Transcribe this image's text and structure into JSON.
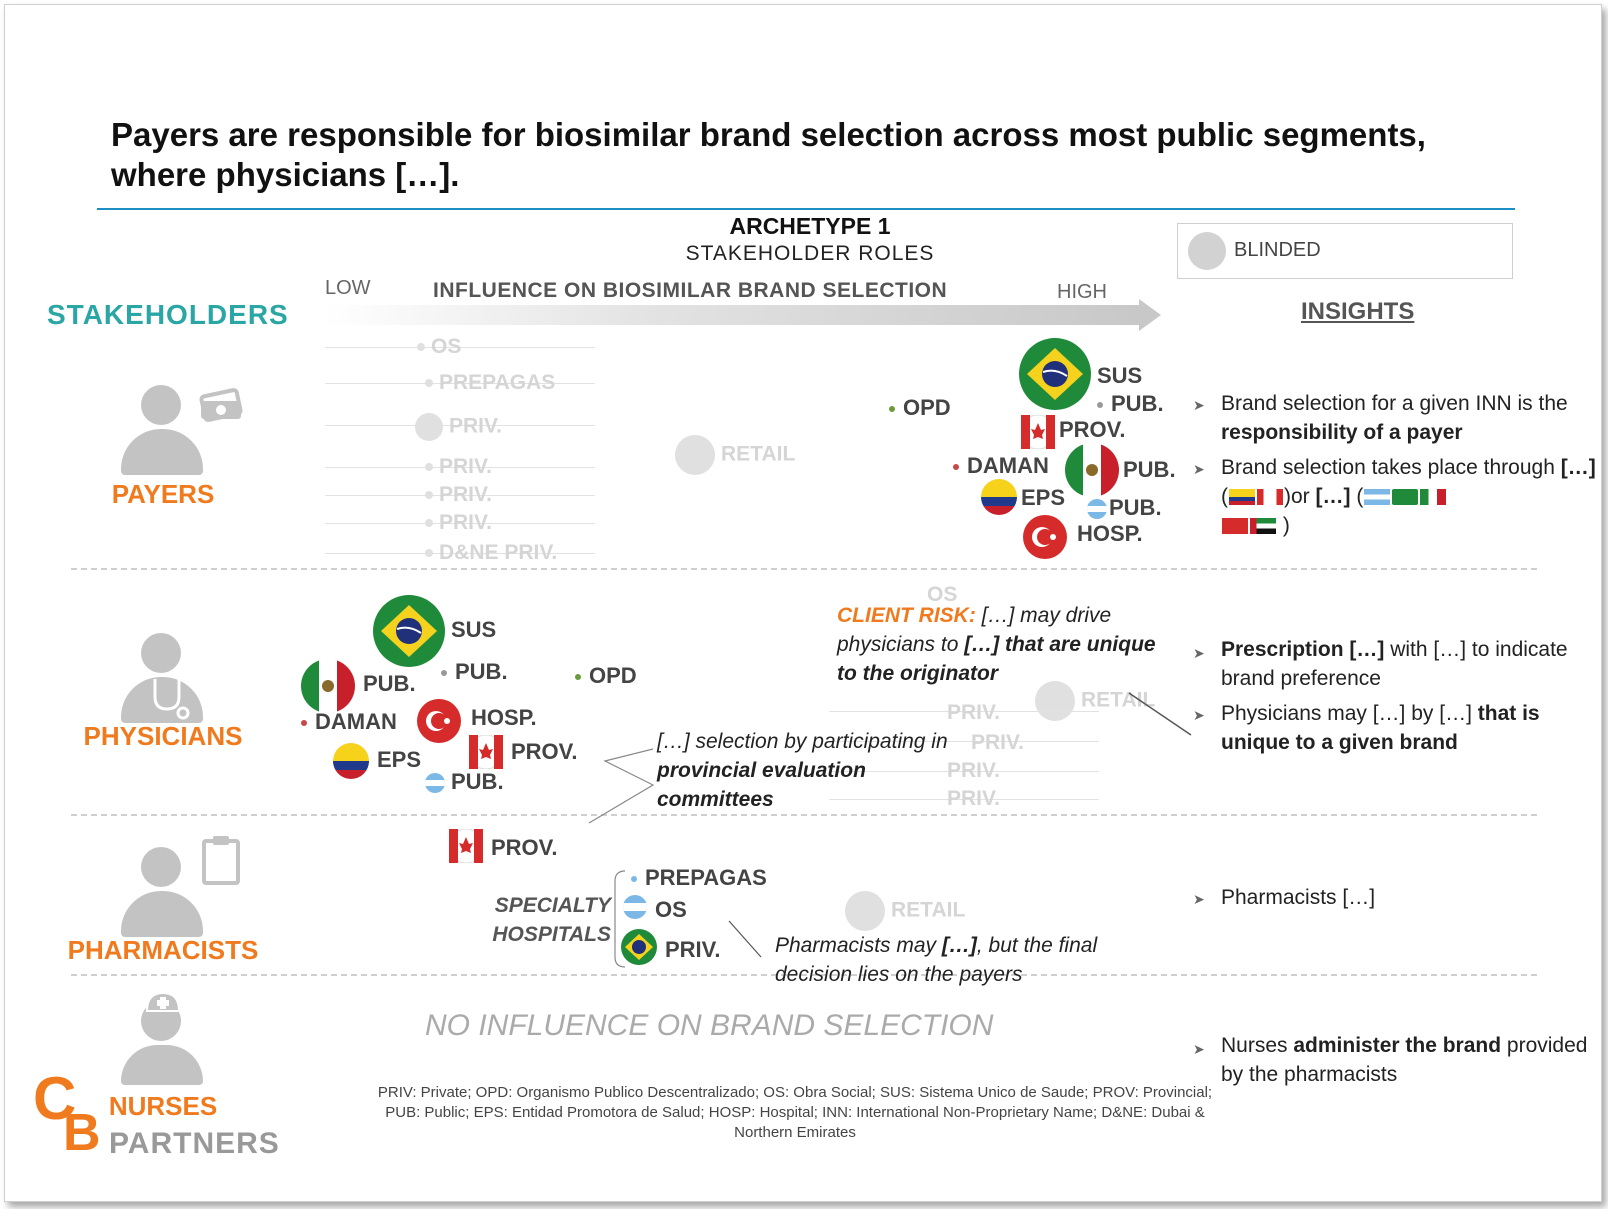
{
  "title": "Payers are responsible for biosimilar brand selection across most public segments, where physicians […].",
  "archetype": "ARCHETYPE 1",
  "roles_label": "STAKEHOLDER ROLES",
  "legend": {
    "label": "BLINDED"
  },
  "axis": {
    "low": "LOW",
    "high": "HIGH",
    "label": "INFLUENCE ON BIOSIMILAR BRAND SELECTION"
  },
  "stakeholders_header": "STAKEHOLDERS",
  "insights_header": "INSIGHTS",
  "roles": {
    "payers": "PAYERS",
    "physicians": "PHYSICIANS",
    "pharmacists": "PHARMACISTS",
    "nurses": "NURSES"
  },
  "payers": {
    "faded": [
      "OS",
      "PREPAGAS",
      "PRIV.",
      "PRIV.",
      "PRIV.",
      "PRIV.",
      "D&NE PRIV."
    ],
    "retail": "RETAIL",
    "opd": "OPD",
    "sus": "SUS",
    "pub_br": "PUB.",
    "prov": "PROV.",
    "daman": "DAMAN",
    "pub_mx": "PUB.",
    "eps": "EPS",
    "pub_ar": "PUB.",
    "hosp": "HOSP.",
    "insight1_a": "Brand selection for a given INN is the ",
    "insight1_b": "responsibility of a payer",
    "insight2_a": "Brand selection takes place through ",
    "insight2_b": "[…]",
    "insight2_c": "(",
    "insight2_d": ")or ",
    "insight2_e": "[…]",
    "insight2_f": " (",
    "insight2_g": " )"
  },
  "physicians": {
    "sus": "SUS",
    "pub_br": "PUB.",
    "pub_mx": "PUB.",
    "opd": "OPD",
    "daman": "DAMAN",
    "hosp": "HOSP.",
    "prov": "PROV.",
    "eps": "EPS",
    "pub_ar": "PUB.",
    "faded": [
      "OS",
      "RETAIL",
      "PRIV.",
      "PRIV.",
      "PRIV.",
      "PRIV."
    ],
    "risk_label": "CLIENT RISK:",
    "risk_1": " […] may drive physicians to ",
    "risk_2": "[…] that are unique to the originator",
    "committee_1": "[…] selection by participating in ",
    "committee_2": "provincial evaluation committees",
    "insight1_a": "Prescription […]",
    "insight1_b": " with […] to indicate brand preference",
    "insight2_a": "Physicians may […] by […] ",
    "insight2_b": "that is unique to a given brand"
  },
  "pharmacists": {
    "prov": "PROV.",
    "specialty": "SPECIALTY HOSPITALS",
    "prepagas": "PREPAGAS",
    "os": "OS",
    "priv": "PRIV.",
    "retail": "RETAIL",
    "note_1": "Pharmacists may ",
    "note_2": "[…]",
    "note_3": ", but the final decision lies on the payers",
    "insight": "Pharmacists […]"
  },
  "nurses": {
    "no_influence": "NO INFLUENCE ON BRAND SELECTION",
    "insight_a": "Nurses ",
    "insight_b": "administer the brand",
    "insight_c": " provided by the pharmacists"
  },
  "footnote": {
    "line1": "PRIV: Private; OPD: Organismo Publico Descentralizado; OS: Obra Social; SUS: Sistema Unico de Saude; PROV: Provincial;",
    "line2": "PUB: Public; EPS: Entidad Promotora de Salud; HOSP: Hospital; INN: International Non-Proprietary Name; D&NE: Dubai &",
    "line3": "Northern Emirates"
  },
  "logo": {
    "c": "C",
    "b": "B",
    "partners": "PARTNERS"
  },
  "colors": {
    "accent_orange": "#f07a1e",
    "teal": "#2aa6a4",
    "rule_blue": "#1d8fc4",
    "grey": "#c3c3c3"
  },
  "icons": [
    "person-icon",
    "money-icon",
    "stethoscope-icon",
    "clipboard-icon",
    "nurse-cap-icon",
    "flag-brazil-icon",
    "flag-mexico-icon",
    "flag-canada-icon",
    "flag-colombia-icon",
    "flag-argentina-icon",
    "flag-turkey-icon",
    "flag-uae-icon"
  ]
}
